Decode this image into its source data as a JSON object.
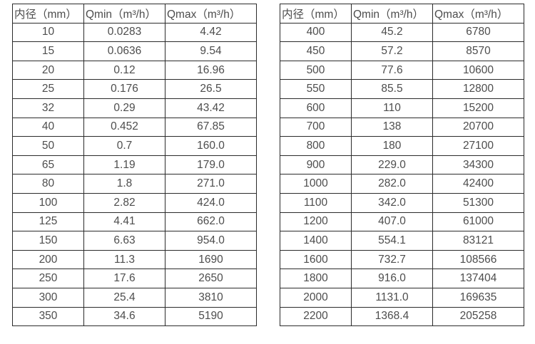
{
  "page": {
    "background": "#ffffff",
    "text_color": "#4d4d4d",
    "border_color": "#2b2b2b"
  },
  "tables": [
    {
      "name": "flow-table-small-diameters",
      "columns": [
        "内径（mm）",
        "Qmin（m³/h）",
        "Qmax（m³/h）"
      ],
      "rows": [
        [
          "10",
          "0.0283",
          "4.42"
        ],
        [
          "15",
          "0.0636",
          "9.54"
        ],
        [
          "20",
          "0.12",
          "16.96"
        ],
        [
          "25",
          "0.176",
          "26.5"
        ],
        [
          "32",
          "0.29",
          "43.42"
        ],
        [
          "40",
          "0.452",
          "67.85"
        ],
        [
          "50",
          "0.7",
          "160.0"
        ],
        [
          "65",
          "1.19",
          "179.0"
        ],
        [
          "80",
          "1.8",
          "271.0"
        ],
        [
          "100",
          "2.82",
          "424.0"
        ],
        [
          "125",
          "4.41",
          "662.0"
        ],
        [
          "150",
          "6.63",
          "954.0"
        ],
        [
          "200",
          "11.3",
          "1690"
        ],
        [
          "250",
          "17.6",
          "2650"
        ],
        [
          "300",
          "25.4",
          "3810"
        ],
        [
          "350",
          "34.6",
          "5190"
        ]
      ]
    },
    {
      "name": "flow-table-large-diameters",
      "columns": [
        "内径（mm）",
        "Qmin（m³/h）",
        "Qmax（m³/h）"
      ],
      "rows": [
        [
          "400",
          "45.2",
          "6780"
        ],
        [
          "450",
          "57.2",
          "8570"
        ],
        [
          "500",
          "77.6",
          "10600"
        ],
        [
          "550",
          "85.5",
          "12800"
        ],
        [
          "600",
          "110",
          "15200"
        ],
        [
          "700",
          "138",
          "20700"
        ],
        [
          "800",
          "180",
          "27100"
        ],
        [
          "900",
          "229.0",
          "34300"
        ],
        [
          "1000",
          "282.0",
          "42400"
        ],
        [
          "1100",
          "342.0",
          "51300"
        ],
        [
          "1200",
          "407.0",
          "61000"
        ],
        [
          "1400",
          "554.1",
          "83121"
        ],
        [
          "1600",
          "732.7",
          "108566"
        ],
        [
          "1800",
          "916.0",
          "137404"
        ],
        [
          "2000",
          "1131.0",
          "169635"
        ],
        [
          "2200",
          "1368.4",
          "205258"
        ]
      ]
    }
  ]
}
